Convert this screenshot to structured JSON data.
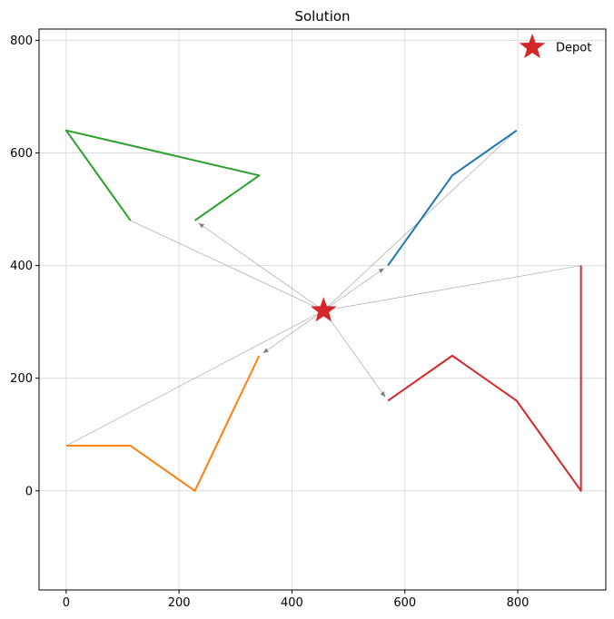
{
  "chart_data": {
    "type": "line",
    "title": "Solution",
    "xlabel": "",
    "ylabel": "",
    "xlim": [
      -48,
      956
    ],
    "ylim": [
      -176,
      820
    ],
    "xticks": [
      0,
      200,
      400,
      600,
      800
    ],
    "yticks": [
      0,
      200,
      400,
      600,
      800
    ],
    "grid": true,
    "legend_position": "top-right",
    "depot": {
      "x": 456,
      "y": 320,
      "label": "Depot",
      "color": "#d62728"
    },
    "series": [
      {
        "color": "#1f77b4",
        "points": [
          [
            570,
            400
          ],
          [
            684,
            560
          ],
          [
            798,
            640
          ]
        ]
      },
      {
        "color": "#ff7f0e",
        "points": [
          [
            342,
            240
          ],
          [
            228,
            0
          ],
          [
            114,
            80
          ],
          [
            0,
            80
          ]
        ]
      },
      {
        "color": "#2ca02c",
        "points": [
          [
            228,
            480
          ],
          [
            342,
            560
          ],
          [
            0,
            640
          ],
          [
            114,
            480
          ]
        ]
      },
      {
        "color": "#d62728",
        "points": [
          [
            570,
            160
          ],
          [
            684,
            240
          ],
          [
            798,
            160
          ],
          [
            912,
            0
          ],
          [
            912,
            400
          ]
        ]
      }
    ],
    "depot_links": [
      {
        "from": [
          456,
          320
        ],
        "to": [
          570,
          400
        ],
        "arrow": true
      },
      {
        "from": [
          798,
          640
        ],
        "to": [
          456,
          320
        ],
        "arrow": false
      },
      {
        "from": [
          456,
          320
        ],
        "to": [
          342,
          240
        ],
        "arrow": true
      },
      {
        "from": [
          0,
          80
        ],
        "to": [
          456,
          320
        ],
        "arrow": false
      },
      {
        "from": [
          456,
          320
        ],
        "to": [
          228,
          480
        ],
        "arrow": true
      },
      {
        "from": [
          114,
          480
        ],
        "to": [
          456,
          320
        ],
        "arrow": false
      },
      {
        "from": [
          456,
          320
        ],
        "to": [
          570,
          160
        ],
        "arrow": true
      },
      {
        "from": [
          912,
          400
        ],
        "to": [
          456,
          320
        ],
        "arrow": false
      }
    ]
  }
}
